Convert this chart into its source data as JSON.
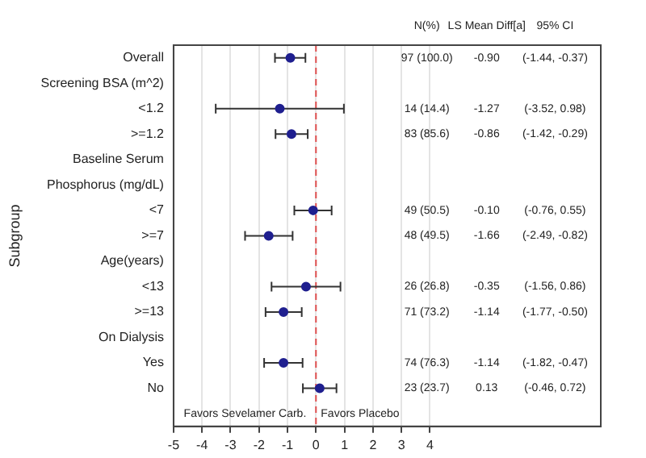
{
  "chart_data": {
    "type": "scatter",
    "ylabel": "Subgroup",
    "categories": [
      "Overall",
      "Screening BSA (m^2)",
      "<1.2",
      ">=1.2",
      "Baseline Serum",
      "Phosphorus (mg/dL)",
      "<7",
      ">=7",
      "Age(years)",
      "<13",
      ">=13",
      "On Dialysis",
      "Yes",
      "No",
      null
    ],
    "values": [
      -0.9,
      null,
      -1.27,
      -0.86,
      null,
      null,
      -0.1,
      -1.66,
      null,
      -0.35,
      -1.14,
      null,
      -1.14,
      0.13,
      null
    ],
    "errors": [
      [
        -1.44,
        -0.37
      ],
      null,
      [
        -3.52,
        0.98
      ],
      [
        -1.42,
        -0.29
      ],
      null,
      null,
      [
        -0.76,
        0.55
      ],
      [
        -2.49,
        -0.82
      ],
      null,
      [
        -1.56,
        0.86
      ],
      [
        -1.77,
        -0.5
      ],
      null,
      [
        -1.82,
        -0.47
      ],
      [
        -0.46,
        0.72
      ],
      null
    ],
    "color": "#1f1f8f",
    "marker": "circle",
    "orientation": "horizontal",
    "xlim": [
      -5,
      10
    ],
    "xticks": [
      -5,
      -4,
      -3,
      -2,
      -1,
      0,
      1,
      2,
      3,
      4
    ],
    "grid": "x",
    "legend": false,
    "ref_lines": [
      {
        "axis": "x",
        "value": 0,
        "color": "#e05050",
        "line_style": "dashed"
      }
    ],
    "annotations": [
      "Favors Sevelamer Carb.",
      "Favors Placebo",
      "N(%)",
      "LS Mean Diff[a]",
      "95% CI",
      "97 (100.0)",
      "-0.90",
      "(-1.44, -0.37)",
      "14 (14.4)",
      "-1.27",
      "(-3.52, 0.98)",
      "83 (85.6)",
      "-0.86",
      "(-1.42, -0.29)",
      "49 (50.5)",
      "-0.10",
      "(-0.76, 0.55)",
      "48 (49.5)",
      "-1.66",
      "(-2.49, -0.82)",
      "26 (26.8)",
      "-0.35",
      "(-1.56, 0.86)",
      "71 (73.2)",
      "-1.14",
      "(-1.77, -0.50)",
      "74 (76.3)",
      "-1.14",
      "(-1.82, -0.47)",
      "23 (23.7)",
      "0.13",
      "(-0.46, 0.72)"
    ]
  }
}
